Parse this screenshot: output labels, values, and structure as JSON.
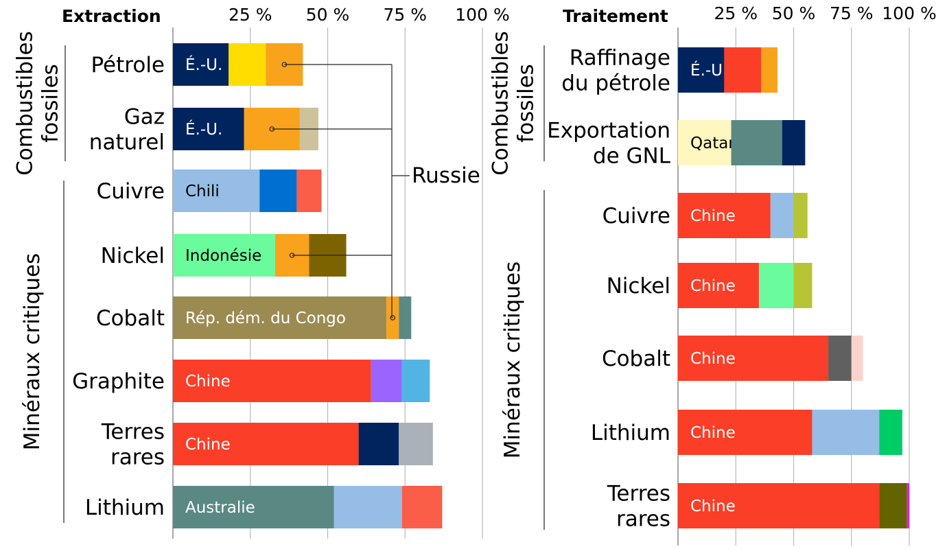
{
  "chart_data": [
    {
      "type": "bar",
      "orientation": "horizontal",
      "stacked": true,
      "title": "Extraction",
      "xlim": [
        0,
        100
      ],
      "xticks": [
        "25 %",
        "50 %",
        "75 %",
        "100 %"
      ],
      "groups": [
        {
          "label": "Combustibles fossiles",
          "categories": [
            "Pétrole",
            "Gaz naturel"
          ]
        },
        {
          "label": "Minéraux critiques",
          "categories": [
            "Cuivre",
            "Nickel",
            "Cobalt",
            "Graphite",
            "Terres rares",
            "Lithium"
          ]
        }
      ],
      "rows": [
        {
          "label": "Pétrole",
          "segments": [
            {
              "value": 18,
              "color": "#00245e",
              "label": "É.-U.",
              "label_color": "#ffffff"
            },
            {
              "value": 12,
              "color": "#ffdd00"
            },
            {
              "value": 12,
              "color": "#f9a21b",
              "marker": true
            }
          ]
        },
        {
          "label": "Gaz naturel",
          "segments": [
            {
              "value": 23,
              "color": "#00245e",
              "label": "É.-U.",
              "label_color": "#ffffff"
            },
            {
              "value": 18,
              "color": "#f9a21b",
              "marker": true
            },
            {
              "value": 6,
              "color": "#cdc29a"
            }
          ]
        },
        {
          "label": "Cuivre",
          "segments": [
            {
              "value": 28,
              "color": "#95bde6",
              "label": "Chili",
              "label_color": "#000000"
            },
            {
              "value": 12,
              "color": "#0070d0"
            },
            {
              "value": 8,
              "color": "#fa5d48"
            }
          ]
        },
        {
          "label": "Nickel",
          "segments": [
            {
              "value": 33,
              "color": "#6afb9c",
              "label": "Indonésie",
              "label_color": "#000000"
            },
            {
              "value": 11,
              "color": "#f9a21b",
              "marker": true
            },
            {
              "value": 12,
              "color": "#7d6300"
            }
          ]
        },
        {
          "label": "Cobalt",
          "segments": [
            {
              "value": 69,
              "color": "#9b8b51",
              "label": "Rép. dém. du Congo",
              "label_color": "#ffffff"
            },
            {
              "value": 4,
              "color": "#f9a21b",
              "marker": true
            },
            {
              "value": 4,
              "color": "#5a8983"
            }
          ]
        },
        {
          "label": "Graphite",
          "segments": [
            {
              "value": 64,
              "color": "#fa3e27",
              "label": "Chine",
              "label_color": "#ffffff"
            },
            {
              "value": 10,
              "color": "#9b63ff"
            },
            {
              "value": 9,
              "color": "#52b4e2"
            }
          ]
        },
        {
          "label": "Terres rares",
          "segments": [
            {
              "value": 60,
              "color": "#fa3e27",
              "label": "Chine",
              "label_color": "#ffffff"
            },
            {
              "value": 13,
              "color": "#00245e"
            },
            {
              "value": 11,
              "color": "#abb1b8"
            }
          ]
        },
        {
          "label": "Lithium",
          "segments": [
            {
              "value": 52,
              "color": "#5a8983",
              "label": "Australie",
              "label_color": "#ffffff"
            },
            {
              "value": 22,
              "color": "#95bde6"
            },
            {
              "value": 13,
              "color": "#fa5d48"
            }
          ]
        }
      ],
      "annotations": [
        {
          "text": "Russie",
          "points_to": "orange segments (Pétrole, Gaz naturel, Nickel, Cobalt)"
        }
      ]
    },
    {
      "type": "bar",
      "orientation": "horizontal",
      "stacked": true,
      "title": "Traitement",
      "xlim": [
        0,
        100
      ],
      "xticks": [
        "25 %",
        "50 %",
        "75 %",
        "100 %"
      ],
      "groups": [
        {
          "label": "Combustibles fossiles",
          "categories": [
            "Raffinage du pétrole",
            "Exportation de GNL"
          ]
        },
        {
          "label": "Minéraux critiques",
          "categories": [
            "Cuivre",
            "Nickel",
            "Cobalt",
            "Lithium",
            "Terres rares"
          ]
        }
      ],
      "rows": [
        {
          "label": "Raffinage du pétrole",
          "segments": [
            {
              "value": 20,
              "color": "#00245e",
              "label": "É.-U.",
              "label_color": "#ffffff"
            },
            {
              "value": 16,
              "color": "#fa3e27"
            },
            {
              "value": 7,
              "color": "#f9a21b"
            }
          ]
        },
        {
          "label": "Exportation de GNL",
          "segments": [
            {
              "value": 23,
              "color": "#fff6c0",
              "label": "Qatar",
              "label_color": "#000000"
            },
            {
              "value": 22,
              "color": "#5a8983"
            },
            {
              "value": 10,
              "color": "#00245e"
            }
          ]
        },
        {
          "label": "Cuivre",
          "segments": [
            {
              "value": 40,
              "color": "#fa3e27",
              "label": "Chine",
              "label_color": "#ffffff"
            },
            {
              "value": 10,
              "color": "#95bde6"
            },
            {
              "value": 6,
              "color": "#b6c435"
            }
          ]
        },
        {
          "label": "Nickel",
          "segments": [
            {
              "value": 35,
              "color": "#fa3e27",
              "label": "Chine",
              "label_color": "#ffffff"
            },
            {
              "value": 15,
              "color": "#6afb9c"
            },
            {
              "value": 8,
              "color": "#b6c435"
            }
          ]
        },
        {
          "label": "Cobalt",
          "segments": [
            {
              "value": 65,
              "color": "#fa3e27",
              "label": "Chine",
              "label_color": "#ffffff"
            },
            {
              "value": 10,
              "color": "#606060"
            },
            {
              "value": 5,
              "color": "#fbd3cd"
            }
          ]
        },
        {
          "label": "Lithium",
          "segments": [
            {
              "value": 58,
              "color": "#fa3e27",
              "label": "Chine",
              "label_color": "#ffffff"
            },
            {
              "value": 29,
              "color": "#95bde6"
            },
            {
              "value": 10,
              "color": "#00cc66"
            }
          ]
        },
        {
          "label": "Terres rares",
          "segments": [
            {
              "value": 87,
              "color": "#fa3e27",
              "label": "Chine",
              "label_color": "#ffffff"
            },
            {
              "value": 12,
              "color": "#636300"
            },
            {
              "value": 1,
              "color": "#e020e0"
            }
          ]
        }
      ]
    }
  ]
}
